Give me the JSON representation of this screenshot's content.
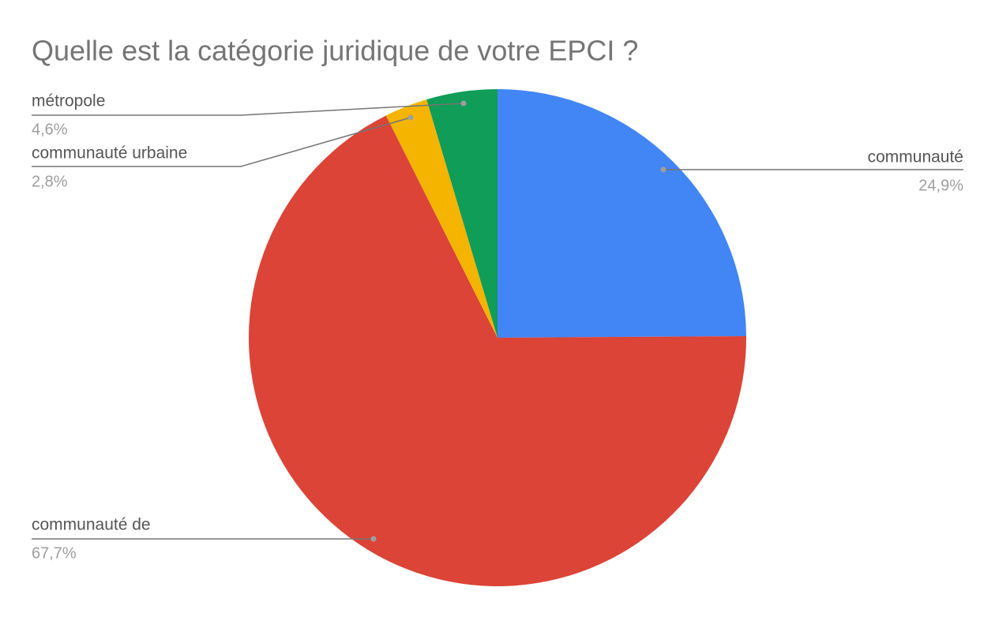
{
  "chart_data": {
    "type": "pie",
    "title": "Quelle est la catégorie juridique de votre EPCI ?",
    "categories": [
      "communauté",
      "communauté de",
      "communauté urbaine",
      "métropole"
    ],
    "values": [
      24.9,
      67.7,
      2.8,
      4.6
    ],
    "value_labels": [
      "24,9%",
      "67,7%",
      "2,8%",
      "4,6%"
    ],
    "colors": [
      "#4285f4",
      "#db4437",
      "#f4b400",
      "#0f9d58"
    ]
  }
}
